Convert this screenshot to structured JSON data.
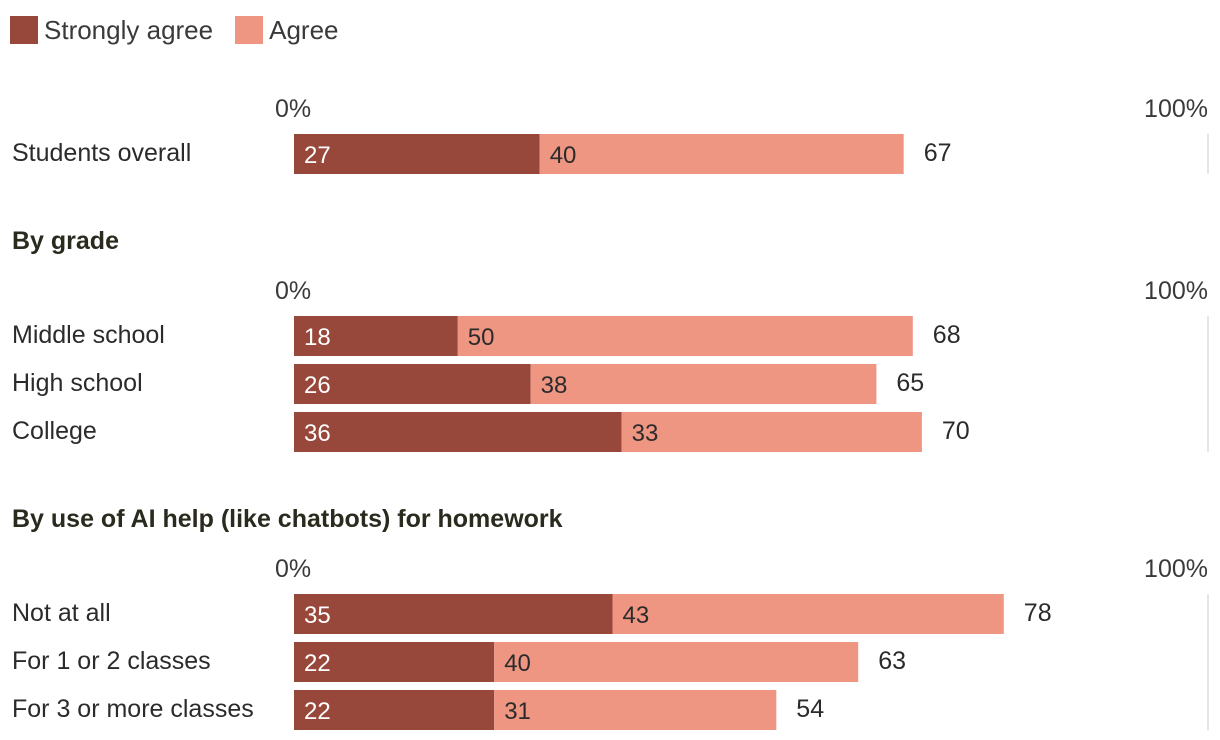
{
  "colors": {
    "strongly_agree": "#98473b",
    "agree": "#ef9683",
    "text_dark": "#2b2b2b",
    "axis_line": "#e6e6e6"
  },
  "legend": [
    {
      "label": "Strongly agree",
      "color_key": "strongly_agree"
    },
    {
      "label": "Agree",
      "color_key": "agree"
    }
  ],
  "chart_data": {
    "type": "bar",
    "stacked": true,
    "orientation": "horizontal",
    "xlim": [
      0,
      100
    ],
    "axis_tick_labels": [
      "0%",
      "100%"
    ],
    "series": [
      {
        "name": "Strongly agree"
      },
      {
        "name": "Agree"
      }
    ],
    "groups": [
      {
        "title": "",
        "rows": [
          {
            "label": "Students overall",
            "strongly_agree": 27,
            "agree": 40,
            "total": 67
          }
        ]
      },
      {
        "title": "By grade",
        "rows": [
          {
            "label": "Middle school",
            "strongly_agree": 18,
            "agree": 50,
            "total": 68
          },
          {
            "label": "High school",
            "strongly_agree": 26,
            "agree": 38,
            "total": 65
          },
          {
            "label": "College",
            "strongly_agree": 36,
            "agree": 33,
            "total": 70
          }
        ]
      },
      {
        "title": "By use of AI help (like chatbots) for homework",
        "rows": [
          {
            "label": "Not at all",
            "strongly_agree": 35,
            "agree": 43,
            "total": 78
          },
          {
            "label": "For 1 or 2 classes",
            "strongly_agree": 22,
            "agree": 40,
            "total": 63
          },
          {
            "label": "For 3 or more classes",
            "strongly_agree": 22,
            "agree": 31,
            "total": 54
          }
        ]
      }
    ]
  }
}
